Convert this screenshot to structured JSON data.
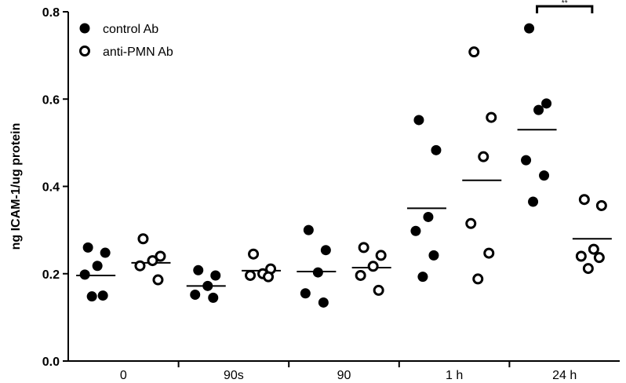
{
  "chart_data": {
    "type": "scatter",
    "ylabel": "ng ICAM-1/ug protein",
    "ylim": [
      0,
      0.8
    ],
    "yticks": [
      "0.0",
      "0.2",
      "0.4",
      "0.6",
      "0.8"
    ],
    "categories": [
      "0",
      "90s",
      "90",
      "1 h",
      "24 h"
    ],
    "legend": {
      "placement": "top-left"
    },
    "series": [
      {
        "name": "control Ab",
        "marker": "filled-circle",
        "color": "#000000",
        "points": [
          [
            0.26,
            0.248,
            0.218,
            0.198,
            0.15,
            0.148
          ],
          [
            0.208,
            0.196,
            0.172,
            0.152,
            0.145
          ],
          [
            0.3,
            0.254,
            0.203,
            0.155,
            0.134
          ],
          [
            0.552,
            0.483,
            0.33,
            0.298,
            0.242,
            0.193
          ],
          [
            0.762,
            0.59,
            0.575,
            0.46,
            0.425,
            0.365
          ]
        ],
        "means": [
          0.196,
          0.172,
          0.205,
          0.35,
          0.53
        ]
      },
      {
        "name": "anti-PMN Ab",
        "marker": "open-circle",
        "color": "#000000",
        "points": [
          [
            0.28,
            0.24,
            0.23,
            0.218,
            0.186
          ],
          [
            0.245,
            0.211,
            0.2,
            0.196,
            0.193
          ],
          [
            0.26,
            0.242,
            0.217,
            0.196,
            0.162
          ],
          [
            0.708,
            0.558,
            0.468,
            0.315,
            0.247,
            0.188
          ],
          [
            0.37,
            0.356,
            0.256,
            0.24,
            0.237,
            0.212
          ]
        ],
        "means": [
          0.225,
          0.207,
          0.214,
          0.414,
          0.28
        ]
      }
    ],
    "annotations": [
      {
        "type": "significance-bracket",
        "between": [
          "24 h control Ab",
          "24 h anti-PMN Ab"
        ],
        "text": "**"
      }
    ]
  }
}
